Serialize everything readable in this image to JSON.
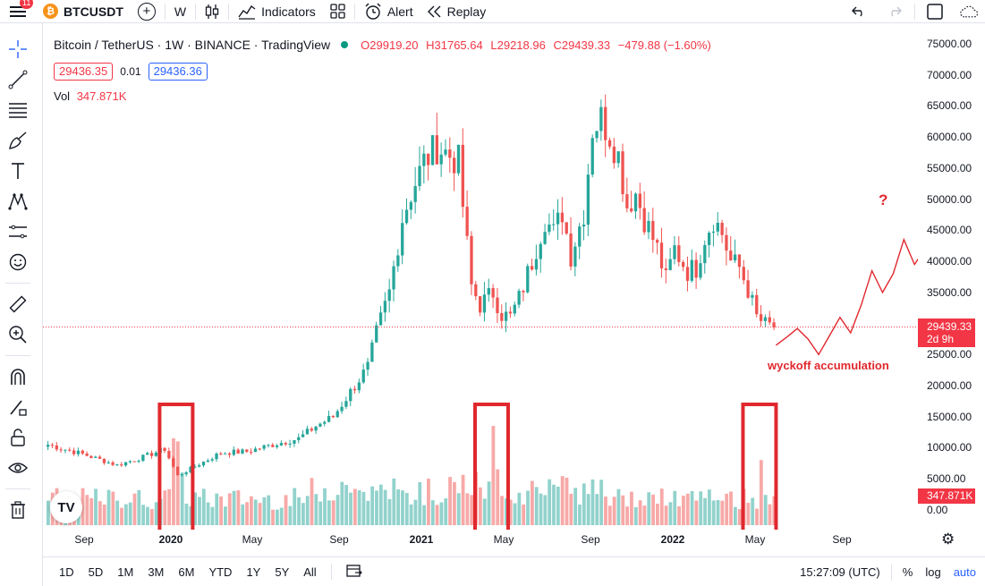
{
  "topbar": {
    "notification_count": "11",
    "symbol": "BTCUSDT",
    "interval": "W",
    "indicators_label": "Indicators",
    "alert_label": "Alert",
    "replay_label": "Replay"
  },
  "legend": {
    "title": "Bitcoin / TetherUS · 1W · BINANCE · TradingView",
    "open": "O29919.20",
    "high": "H31765.64",
    "low": "L29218.96",
    "close": "C29439.33",
    "change": "−479.88 (−1.60%)",
    "bid": "29436.35",
    "spread": "0.01",
    "ask": "29436.36",
    "vol_label": "Vol",
    "vol_value": "347.871K"
  },
  "price_scale": {
    "ticks": [
      "75000.00",
      "70000.00",
      "65000.00",
      "60000.00",
      "55000.00",
      "50000.00",
      "45000.00",
      "40000.00",
      "35000.00",
      "30000.00",
      "25000.00",
      "20000.00",
      "15000.00",
      "10000.00",
      "5000.00",
      "0.00"
    ],
    "current_price": "29439.33",
    "countdown": "2d 9h",
    "volume_current": "347.871K"
  },
  "time_axis": [
    {
      "label": "Sep",
      "year": false
    },
    {
      "label": "2020",
      "year": true
    },
    {
      "label": "May",
      "year": false
    },
    {
      "label": "Sep",
      "year": false
    },
    {
      "label": "2021",
      "year": true
    },
    {
      "label": "May",
      "year": false
    },
    {
      "label": "Sep",
      "year": false
    },
    {
      "label": "2022",
      "year": true
    },
    {
      "label": "May",
      "year": false
    },
    {
      "label": "Sep",
      "year": false
    }
  ],
  "bottombar": {
    "ranges": [
      "1D",
      "5D",
      "1M",
      "3M",
      "6M",
      "YTD",
      "1Y",
      "5Y",
      "All"
    ],
    "clock": "15:27:09 (UTC)",
    "percent": "%",
    "log": "log",
    "auto": "auto"
  },
  "annotations": {
    "question": "?",
    "wyckoff": "wyckoff accumulation"
  },
  "logo_text": "TV",
  "colors": {
    "up": "#26a69a",
    "down": "#ef5350",
    "annotation": "#e0282e",
    "accent": "#2962ff"
  },
  "chart_data": {
    "type": "candlestick",
    "price_anchors": [
      [
        0,
        10500
      ],
      [
        8,
        9000
      ],
      [
        16,
        7200
      ],
      [
        22,
        8500
      ],
      [
        27,
        9800
      ],
      [
        30,
        5500
      ],
      [
        34,
        7000
      ],
      [
        40,
        9200
      ],
      [
        46,
        9400
      ],
      [
        52,
        10500
      ],
      [
        58,
        11500
      ],
      [
        62,
        13500
      ],
      [
        66,
        15000
      ],
      [
        70,
        19000
      ],
      [
        74,
        23000
      ],
      [
        76,
        28500
      ],
      [
        79,
        35000
      ],
      [
        82,
        47000
      ],
      [
        84,
        51000
      ],
      [
        87,
        56000
      ],
      [
        90,
        58500
      ],
      [
        93,
        57000
      ],
      [
        95,
        56000
      ],
      [
        96,
        49000
      ],
      [
        98,
        36000
      ],
      [
        100,
        33000
      ],
      [
        103,
        35000
      ],
      [
        105,
        31500
      ],
      [
        107,
        31000
      ],
      [
        109,
        34000
      ],
      [
        112,
        40000
      ],
      [
        115,
        47000
      ],
      [
        117,
        44500
      ],
      [
        119,
        48000
      ],
      [
        121,
        41000
      ],
      [
        124,
        48000
      ],
      [
        126,
        61500
      ],
      [
        128,
        63000
      ],
      [
        130,
        60500
      ],
      [
        132,
        57000
      ],
      [
        134,
        49000
      ],
      [
        136,
        51000
      ],
      [
        138,
        47000
      ],
      [
        141,
        42000
      ],
      [
        143,
        37000
      ],
      [
        145,
        42000
      ],
      [
        148,
        38500
      ],
      [
        150,
        39000
      ],
      [
        152,
        44000
      ],
      [
        154,
        47000
      ],
      [
        156,
        44500
      ],
      [
        158,
        40000
      ],
      [
        160,
        39000
      ],
      [
        162,
        35500
      ],
      [
        164,
        31000
      ],
      [
        166,
        29800
      ],
      [
        168,
        29500
      ]
    ],
    "volume_highlights": [
      [
        29,
        14000
      ],
      [
        30,
        13500
      ],
      [
        31,
        8500
      ],
      [
        103,
        16000
      ],
      [
        104,
        9000
      ],
      [
        165,
        10500
      ]
    ],
    "projection": [
      [
        26500,
        0
      ],
      [
        27800,
        0
      ],
      [
        29200,
        0
      ],
      [
        27500,
        0
      ],
      [
        25000,
        0
      ],
      [
        28000,
        0
      ],
      [
        31000,
        0
      ],
      [
        28500,
        0
      ],
      [
        33000,
        0
      ],
      [
        38500,
        0
      ],
      [
        35000,
        0
      ],
      [
        38000,
        0
      ],
      [
        43500,
        0
      ],
      [
        39500,
        0
      ],
      [
        42000,
        0
      ],
      [
        46500,
        0
      ]
    ],
    "ylim": [
      0,
      76500
    ],
    "highlight_boxes": [
      [
        27,
        33
      ],
      [
        100,
        106
      ],
      [
        162,
        168
      ]
    ]
  }
}
